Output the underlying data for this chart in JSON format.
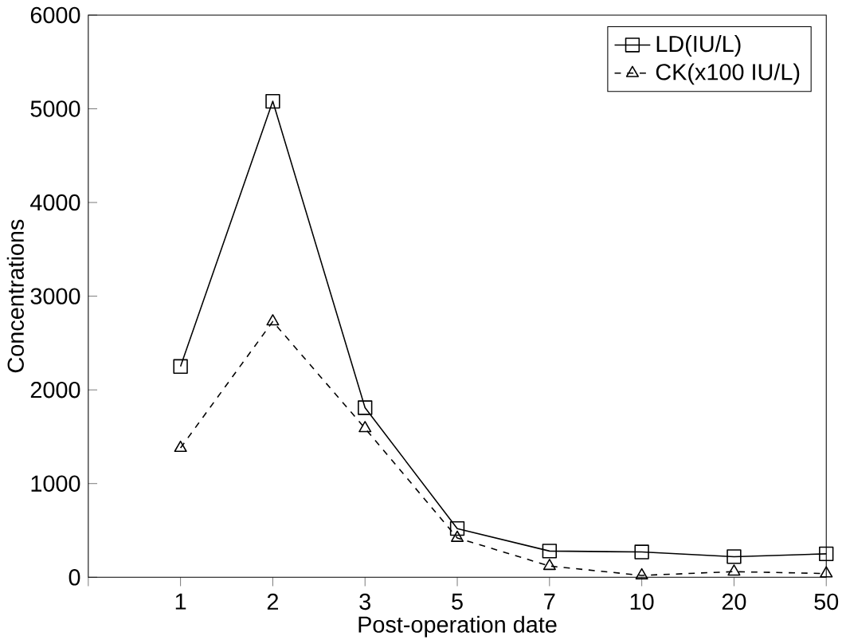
{
  "chart_data": {
    "type": "line",
    "xlabel": "Post-operation date",
    "ylabel": "Concentrations",
    "categories": [
      null,
      "1",
      "2",
      "3",
      "5",
      "7",
      "10",
      "20",
      "50"
    ],
    "ylim": [
      0,
      6000
    ],
    "yticks": [
      0,
      1000,
      2000,
      3000,
      4000,
      5000,
      6000
    ],
    "legend": "top right",
    "grid": false,
    "series": [
      {
        "name": "LD(IU/L)",
        "color": "#000000",
        "marker": "square",
        "line_style": "solid",
        "values": [
          null,
          2250,
          5080,
          1810,
          520,
          280,
          270,
          220,
          250
        ]
      },
      {
        "name": "CK(x100 IU/L)",
        "color": "#000000",
        "marker": "triangle",
        "line_style": "dashed",
        "values": [
          null,
          1380,
          2730,
          1590,
          420,
          120,
          20,
          60,
          40
        ]
      }
    ]
  }
}
